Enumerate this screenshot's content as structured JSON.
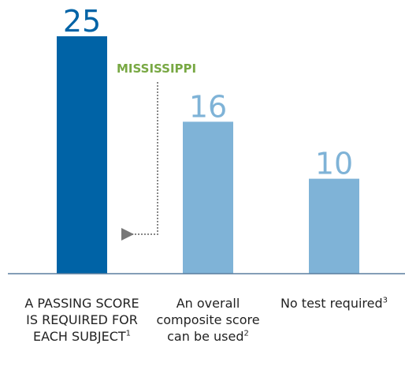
{
  "chart_data": {
    "type": "bar",
    "categories": [
      "A PASSING SCORE IS REQUIRED FOR EACH SUBJECT",
      "An overall composite score can be used",
      "No test required"
    ],
    "footnotes": [
      "1",
      "2",
      "3"
    ],
    "values": [
      25,
      16,
      10
    ],
    "colors": [
      "#0063a6",
      "#7fb3d7",
      "#7fb3d7"
    ],
    "ylim": [
      0,
      25
    ],
    "annotation": "MISSISSIPPI",
    "annotation_color": "#78a843"
  }
}
